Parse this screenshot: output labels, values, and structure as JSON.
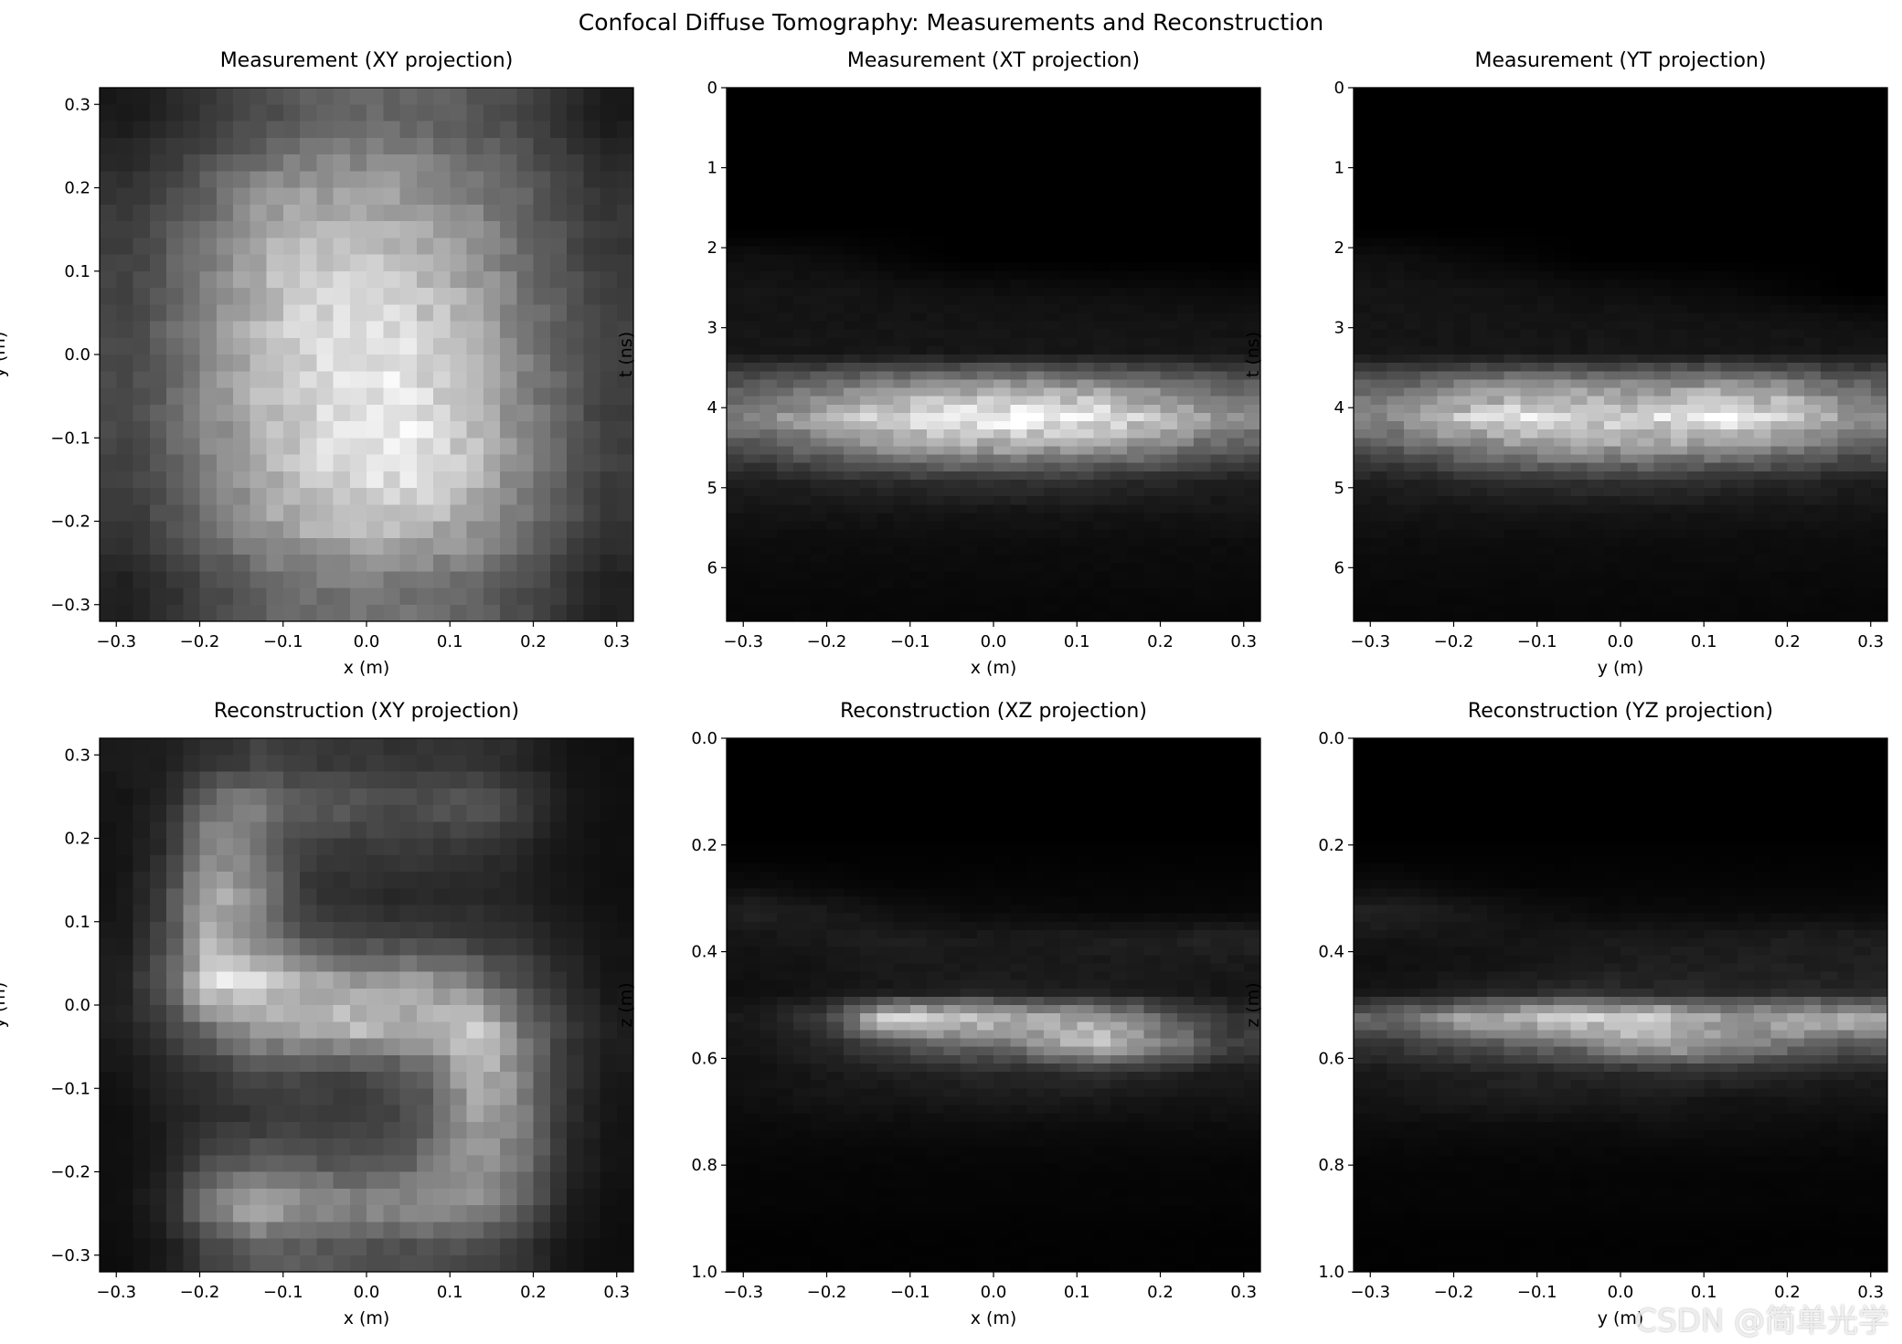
{
  "title": "Confocal Diffuse Tomography: Measurements and Reconstruction",
  "watermark": "CSDN @简单光学",
  "chart_data": [
    {
      "type": "heatmap",
      "colormap": "gray",
      "title": "Measurement (XY projection)",
      "xlabel": "x (m)",
      "ylabel": "y (m)",
      "xlim": [
        -0.32,
        0.32
      ],
      "ylim": [
        -0.32,
        0.32
      ],
      "y_inverted": false,
      "xticks": [
        -0.3,
        -0.2,
        -0.1,
        0.0,
        0.1,
        0.2,
        0.3
      ],
      "xtick_labels": [
        "−0.3",
        "−0.2",
        "−0.1",
        "0.0",
        "0.1",
        "0.2",
        "0.3"
      ],
      "yticks": [
        0.3,
        0.2,
        0.1,
        0.0,
        -0.1,
        -0.2,
        -0.3
      ],
      "ytick_labels": [
        "0.3",
        "0.2",
        "0.1",
        "0.0",
        "−0.1",
        "−0.2",
        "−0.3"
      ],
      "grid_rows_top_to_bottom": [
        [
          0.1,
          0.2,
          0.3,
          0.4,
          0.4,
          0.35,
          0.25,
          0.1
        ],
        [
          0.2,
          0.35,
          0.55,
          0.62,
          0.6,
          0.5,
          0.35,
          0.2
        ],
        [
          0.25,
          0.45,
          0.7,
          0.78,
          0.72,
          0.6,
          0.4,
          0.22
        ],
        [
          0.28,
          0.5,
          0.75,
          0.88,
          0.85,
          0.7,
          0.45,
          0.25
        ],
        [
          0.28,
          0.5,
          0.75,
          0.88,
          0.92,
          0.75,
          0.48,
          0.25
        ],
        [
          0.27,
          0.48,
          0.72,
          0.88,
          0.95,
          0.78,
          0.48,
          0.25
        ],
        [
          0.22,
          0.4,
          0.62,
          0.75,
          0.78,
          0.65,
          0.42,
          0.22
        ],
        [
          0.12,
          0.25,
          0.38,
          0.45,
          0.45,
          0.4,
          0.28,
          0.12
        ]
      ]
    },
    {
      "type": "heatmap",
      "colormap": "gray",
      "title": "Measurement (XT projection)",
      "xlabel": "x (m)",
      "ylabel": "t (ns)",
      "xlim": [
        -0.32,
        0.32
      ],
      "ylim": [
        0,
        6.67
      ],
      "y_inverted": true,
      "xticks": [
        -0.3,
        -0.2,
        -0.1,
        0.0,
        0.1,
        0.2,
        0.3
      ],
      "xtick_labels": [
        "−0.3",
        "−0.2",
        "−0.1",
        "0.0",
        "0.1",
        "0.2",
        "0.3"
      ],
      "yticks": [
        0,
        1,
        2,
        3,
        4,
        5,
        6
      ],
      "ytick_labels": [
        "0",
        "1",
        "2",
        "3",
        "4",
        "5",
        "6"
      ],
      "grid_rows_top_to_bottom": [
        [
          0,
          0,
          0,
          0,
          0,
          0,
          0,
          0
        ],
        [
          0,
          0,
          0,
          0,
          0,
          0,
          0,
          0
        ],
        [
          0,
          0,
          0,
          0,
          0,
          0,
          0,
          0
        ],
        [
          0,
          0,
          0,
          0,
          0,
          0,
          0,
          0
        ],
        [
          0,
          0,
          0,
          0,
          0,
          0,
          0,
          0
        ],
        [
          0.06,
          0.05,
          0.02,
          0,
          0,
          0,
          0,
          0
        ],
        [
          0.08,
          0.08,
          0.07,
          0.06,
          0.06,
          0.05,
          0.05,
          0.04
        ],
        [
          0.08,
          0.08,
          0.08,
          0.08,
          0.08,
          0.08,
          0.08,
          0.07
        ],
        [
          0.09,
          0.09,
          0.09,
          0.09,
          0.09,
          0.09,
          0.09,
          0.09
        ],
        [
          0.35,
          0.45,
          0.55,
          0.6,
          0.62,
          0.58,
          0.5,
          0.4
        ],
        [
          0.5,
          0.7,
          0.85,
          0.95,
          1.0,
          0.92,
          0.78,
          0.55
        ],
        [
          0.3,
          0.45,
          0.55,
          0.6,
          0.62,
          0.58,
          0.48,
          0.35
        ],
        [
          0.12,
          0.15,
          0.18,
          0.2,
          0.2,
          0.18,
          0.15,
          0.12
        ],
        [
          0.08,
          0.08,
          0.08,
          0.08,
          0.08,
          0.08,
          0.08,
          0.08
        ],
        [
          0.05,
          0.05,
          0.05,
          0.05,
          0.05,
          0.05,
          0.05,
          0.05
        ],
        [
          0.04,
          0.04,
          0.04,
          0.04,
          0.04,
          0.04,
          0.04,
          0.04
        ],
        [
          0.03,
          0.03,
          0.03,
          0.03,
          0.03,
          0.03,
          0.03,
          0.03
        ]
      ]
    },
    {
      "type": "heatmap",
      "colormap": "gray",
      "title": "Measurement (YT projection)",
      "xlabel": "y (m)",
      "ylabel": "t (ns)",
      "xlim": [
        -0.32,
        0.32
      ],
      "ylim": [
        0,
        6.67
      ],
      "y_inverted": true,
      "xticks": [
        -0.3,
        -0.2,
        -0.1,
        0.0,
        0.1,
        0.2,
        0.3
      ],
      "xtick_labels": [
        "−0.3",
        "−0.2",
        "−0.1",
        "0.0",
        "0.1",
        "0.2",
        "0.3"
      ],
      "yticks": [
        0,
        1,
        2,
        3,
        4,
        5,
        6
      ],
      "ytick_labels": [
        "0",
        "1",
        "2",
        "3",
        "4",
        "5",
        "6"
      ],
      "grid_rows_top_to_bottom": [
        [
          0,
          0,
          0,
          0,
          0,
          0,
          0,
          0
        ],
        [
          0,
          0,
          0,
          0,
          0,
          0,
          0,
          0
        ],
        [
          0,
          0,
          0,
          0,
          0,
          0,
          0,
          0
        ],
        [
          0,
          0,
          0,
          0,
          0,
          0,
          0,
          0
        ],
        [
          0,
          0,
          0,
          0,
          0,
          0,
          0,
          0
        ],
        [
          0.06,
          0.04,
          0.02,
          0,
          0,
          0,
          0,
          0
        ],
        [
          0.08,
          0.08,
          0.07,
          0.06,
          0.05,
          0.04,
          0.02,
          0
        ],
        [
          0.08,
          0.08,
          0.08,
          0.08,
          0.08,
          0.07,
          0.07,
          0.06
        ],
        [
          0.09,
          0.09,
          0.09,
          0.09,
          0.09,
          0.09,
          0.09,
          0.09
        ],
        [
          0.38,
          0.5,
          0.58,
          0.55,
          0.55,
          0.6,
          0.55,
          0.4
        ],
        [
          0.55,
          0.75,
          0.9,
          0.85,
          0.85,
          0.95,
          0.85,
          0.55
        ],
        [
          0.32,
          0.45,
          0.55,
          0.58,
          0.6,
          0.55,
          0.48,
          0.35
        ],
        [
          0.12,
          0.15,
          0.18,
          0.2,
          0.2,
          0.18,
          0.15,
          0.12
        ],
        [
          0.08,
          0.08,
          0.08,
          0.08,
          0.08,
          0.08,
          0.08,
          0.08
        ],
        [
          0.05,
          0.05,
          0.05,
          0.05,
          0.05,
          0.05,
          0.05,
          0.05
        ],
        [
          0.04,
          0.04,
          0.04,
          0.04,
          0.04,
          0.04,
          0.04,
          0.04
        ],
        [
          0.03,
          0.03,
          0.03,
          0.03,
          0.03,
          0.03,
          0.03,
          0.03
        ]
      ]
    },
    {
      "type": "heatmap",
      "colormap": "gray",
      "title": "Reconstruction (XY projection)",
      "xlabel": "x (m)",
      "ylabel": "y (m)",
      "xlim": [
        -0.32,
        0.32
      ],
      "ylim": [
        -0.32,
        0.32
      ],
      "y_inverted": false,
      "xticks": [
        -0.3,
        -0.2,
        -0.1,
        0.0,
        0.1,
        0.2,
        0.3
      ],
      "xtick_labels": [
        "−0.3",
        "−0.2",
        "−0.1",
        "0.0",
        "0.1",
        "0.2",
        "0.3"
      ],
      "yticks": [
        0.3,
        0.2,
        0.1,
        0.0,
        -0.1,
        -0.2,
        -0.3
      ],
      "ytick_labels": [
        "0.3",
        "0.2",
        "0.1",
        "0.0",
        "−0.1",
        "−0.2",
        "−0.3"
      ],
      "grid_rows_top_to_bottom": [
        [
          0.1,
          0.12,
          0.18,
          0.25,
          0.22,
          0.22,
          0.2,
          0.2,
          0.2,
          0.15,
          0.08,
          0.06
        ],
        [
          0.08,
          0.15,
          0.45,
          0.5,
          0.35,
          0.35,
          0.3,
          0.32,
          0.35,
          0.25,
          0.1,
          0.06
        ],
        [
          0.08,
          0.18,
          0.55,
          0.45,
          0.25,
          0.22,
          0.22,
          0.22,
          0.18,
          0.15,
          0.08,
          0.06
        ],
        [
          0.08,
          0.25,
          0.7,
          0.55,
          0.22,
          0.18,
          0.15,
          0.15,
          0.15,
          0.12,
          0.08,
          0.06
        ],
        [
          0.1,
          0.3,
          0.7,
          0.55,
          0.3,
          0.25,
          0.25,
          0.25,
          0.22,
          0.18,
          0.12,
          0.08
        ],
        [
          0.12,
          0.35,
          0.9,
          0.85,
          0.7,
          0.65,
          0.62,
          0.6,
          0.45,
          0.3,
          0.18,
          0.08
        ],
        [
          0.12,
          0.25,
          0.45,
          0.6,
          0.65,
          0.75,
          0.72,
          0.7,
          0.85,
          0.45,
          0.22,
          0.12
        ],
        [
          0.08,
          0.15,
          0.2,
          0.3,
          0.28,
          0.25,
          0.3,
          0.4,
          0.75,
          0.5,
          0.2,
          0.1
        ],
        [
          0.06,
          0.12,
          0.18,
          0.2,
          0.25,
          0.22,
          0.25,
          0.35,
          0.65,
          0.5,
          0.18,
          0.08
        ],
        [
          0.06,
          0.12,
          0.3,
          0.35,
          0.35,
          0.3,
          0.32,
          0.45,
          0.6,
          0.45,
          0.15,
          0.08
        ],
        [
          0.06,
          0.15,
          0.55,
          0.7,
          0.6,
          0.55,
          0.55,
          0.58,
          0.55,
          0.4,
          0.12,
          0.06
        ],
        [
          0.05,
          0.1,
          0.25,
          0.35,
          0.35,
          0.32,
          0.3,
          0.3,
          0.28,
          0.2,
          0.08,
          0.05
        ]
      ]
    },
    {
      "type": "heatmap",
      "colormap": "gray",
      "title": "Reconstruction (XZ projection)",
      "xlabel": "x (m)",
      "ylabel": "z (m)",
      "xlim": [
        -0.32,
        0.32
      ],
      "ylim": [
        0,
        1.0
      ],
      "y_inverted": true,
      "xticks": [
        -0.3,
        -0.2,
        -0.1,
        0.0,
        0.1,
        0.2,
        0.3
      ],
      "xtick_labels": [
        "−0.3",
        "−0.2",
        "−0.1",
        "0.0",
        "0.1",
        "0.2",
        "0.3"
      ],
      "yticks": [
        0.0,
        0.2,
        0.4,
        0.6,
        0.8,
        1.0
      ],
      "ytick_labels": [
        "0.0",
        "0.2",
        "0.4",
        "0.6",
        "0.8",
        "1.0"
      ],
      "grid_rows_top_to_bottom": [
        [
          0,
          0,
          0,
          0,
          0,
          0,
          0,
          0
        ],
        [
          0,
          0,
          0,
          0,
          0,
          0,
          0,
          0
        ],
        [
          0,
          0,
          0,
          0,
          0,
          0,
          0,
          0
        ],
        [
          0,
          0,
          0,
          0,
          0,
          0,
          0,
          0
        ],
        [
          0.01,
          0.01,
          0.01,
          0.01,
          0.01,
          0.01,
          0.01,
          0.01
        ],
        [
          0.05,
          0.03,
          0.02,
          0.02,
          0.02,
          0.02,
          0.02,
          0.02
        ],
        [
          0.13,
          0.1,
          0.06,
          0.04,
          0.04,
          0.03,
          0.03,
          0.03
        ],
        [
          0.08,
          0.1,
          0.12,
          0.1,
          0.1,
          0.12,
          0.12,
          0.14
        ],
        [
          0.07,
          0.08,
          0.1,
          0.1,
          0.1,
          0.1,
          0.1,
          0.1
        ],
        [
          0.06,
          0.08,
          0.1,
          0.12,
          0.12,
          0.12,
          0.1,
          0.08
        ],
        [
          0.1,
          0.25,
          0.85,
          0.8,
          0.7,
          0.65,
          0.4,
          0.2
        ],
        [
          0.08,
          0.15,
          0.3,
          0.4,
          0.5,
          0.8,
          0.55,
          0.25
        ],
        [
          0.07,
          0.1,
          0.12,
          0.14,
          0.16,
          0.18,
          0.14,
          0.1
        ],
        [
          0.06,
          0.08,
          0.08,
          0.1,
          0.1,
          0.1,
          0.08,
          0.08
        ],
        [
          0.04,
          0.05,
          0.05,
          0.05,
          0.05,
          0.05,
          0.05,
          0.05
        ],
        [
          0.03,
          0.03,
          0.03,
          0.03,
          0.03,
          0.03,
          0.03,
          0.03
        ],
        [
          0.02,
          0.02,
          0.02,
          0.02,
          0.02,
          0.02,
          0.02,
          0.02
        ],
        [
          0.02,
          0.02,
          0.02,
          0.02,
          0.02,
          0.02,
          0.02,
          0.02
        ],
        [
          0.01,
          0.01,
          0.01,
          0.01,
          0.01,
          0.01,
          0.01,
          0.01
        ],
        [
          0.01,
          0.01,
          0.01,
          0.01,
          0.01,
          0.01,
          0.01,
          0.01
        ]
      ]
    },
    {
      "type": "heatmap",
      "colormap": "gray",
      "title": "Reconstruction (YZ projection)",
      "xlabel": "y (m)",
      "ylabel": "z (m)",
      "xlim": [
        -0.32,
        0.32
      ],
      "ylim": [
        0,
        1.0
      ],
      "y_inverted": true,
      "xticks": [
        -0.3,
        -0.2,
        -0.1,
        0.0,
        0.1,
        0.2,
        0.3
      ],
      "xtick_labels": [
        "−0.3",
        "−0.2",
        "−0.1",
        "0.0",
        "0.1",
        "0.2",
        "0.3"
      ],
      "yticks": [
        0.0,
        0.2,
        0.4,
        0.6,
        0.8,
        1.0
      ],
      "ytick_labels": [
        "0.0",
        "0.2",
        "0.4",
        "0.6",
        "0.8",
        "1.0"
      ],
      "grid_rows_top_to_bottom": [
        [
          0,
          0,
          0,
          0,
          0,
          0,
          0,
          0
        ],
        [
          0,
          0,
          0,
          0,
          0,
          0,
          0,
          0
        ],
        [
          0,
          0,
          0,
          0,
          0,
          0,
          0,
          0
        ],
        [
          0,
          0,
          0,
          0,
          0,
          0,
          0,
          0
        ],
        [
          0.01,
          0.01,
          0.01,
          0.01,
          0.01,
          0.01,
          0.01,
          0.01
        ],
        [
          0.05,
          0.03,
          0.02,
          0.02,
          0.02,
          0.02,
          0.02,
          0.02
        ],
        [
          0.13,
          0.1,
          0.06,
          0.04,
          0.04,
          0.04,
          0.04,
          0.04
        ],
        [
          0.08,
          0.08,
          0.08,
          0.1,
          0.1,
          0.1,
          0.12,
          0.12
        ],
        [
          0.06,
          0.07,
          0.08,
          0.1,
          0.12,
          0.12,
          0.12,
          0.12
        ],
        [
          0.08,
          0.12,
          0.15,
          0.18,
          0.15,
          0.15,
          0.15,
          0.15
        ],
        [
          0.4,
          0.6,
          0.75,
          0.8,
          0.85,
          0.6,
          0.7,
          0.7
        ],
        [
          0.2,
          0.3,
          0.35,
          0.45,
          0.7,
          0.55,
          0.45,
          0.35
        ],
        [
          0.1,
          0.12,
          0.14,
          0.15,
          0.18,
          0.18,
          0.15,
          0.12
        ],
        [
          0.08,
          0.1,
          0.12,
          0.1,
          0.1,
          0.08,
          0.08,
          0.08
        ],
        [
          0.05,
          0.05,
          0.05,
          0.05,
          0.06,
          0.06,
          0.05,
          0.05
        ],
        [
          0.03,
          0.03,
          0.03,
          0.03,
          0.03,
          0.03,
          0.03,
          0.03
        ],
        [
          0.02,
          0.02,
          0.02,
          0.02,
          0.02,
          0.02,
          0.02,
          0.02
        ],
        [
          0.02,
          0.02,
          0.02,
          0.02,
          0.02,
          0.02,
          0.02,
          0.02
        ],
        [
          0.01,
          0.01,
          0.01,
          0.01,
          0.01,
          0.01,
          0.01,
          0.01
        ],
        [
          0.01,
          0.01,
          0.01,
          0.01,
          0.01,
          0.01,
          0.01,
          0.01
        ]
      ]
    }
  ]
}
